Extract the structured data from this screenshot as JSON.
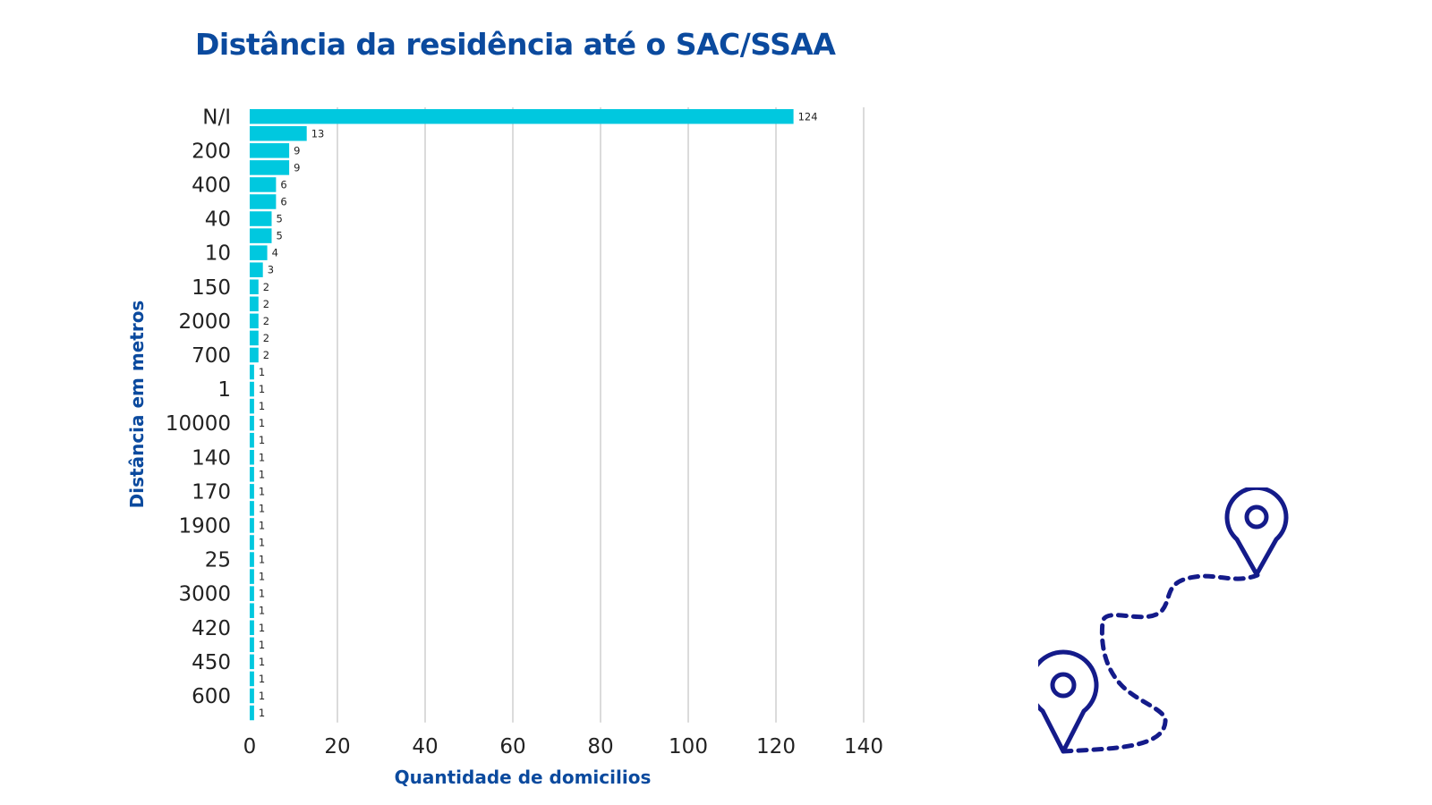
{
  "chart_data": {
    "type": "bar",
    "orientation": "horizontal",
    "title": "Distância da residência até o SAC/SSAA",
    "xlabel": "Quantidade de domicilios",
    "ylabel": "Distância em metros",
    "xlim": [
      0,
      140
    ],
    "xticks": [
      "0",
      "20",
      "40",
      "60",
      "80",
      "100",
      "120",
      "140"
    ],
    "grid": true,
    "bar_color": "#00c8df",
    "shown_category_labels": [
      "N/I",
      "200",
      "400",
      "40",
      "10",
      "150",
      "2000",
      "700",
      "1",
      "10000",
      "140",
      "170",
      "1900",
      "25",
      "3000",
      "420",
      "450",
      "600"
    ],
    "values": [
      124,
      13,
      9,
      9,
      6,
      6,
      5,
      5,
      4,
      3,
      2,
      2,
      2,
      2,
      2,
      1,
      1,
      1,
      1,
      1,
      1,
      1,
      1,
      1,
      1,
      1,
      1,
      1,
      1,
      1,
      1,
      1,
      1,
      1,
      1,
      1
    ]
  },
  "colors": {
    "title": "#0b4a9e",
    "illustration": "#141b8a",
    "grid": "#cfcfcf"
  },
  "decoration": {
    "icons": [
      "location-pin-icon",
      "location-pin-icon",
      "dotted-route-icon"
    ]
  }
}
